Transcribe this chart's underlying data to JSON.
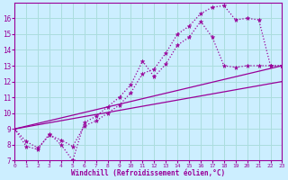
{
  "xlabel": "Windchill (Refroidissement éolien,°C)",
  "bg_color": "#cceeff",
  "grid_color": "#aadddd",
  "line_color": "#990099",
  "xlim": [
    0,
    23
  ],
  "ylim": [
    7,
    17
  ],
  "yticks": [
    7,
    8,
    9,
    10,
    11,
    12,
    13,
    14,
    15,
    16
  ],
  "xticks": [
    0,
    1,
    2,
    3,
    4,
    5,
    6,
    7,
    8,
    9,
    10,
    11,
    12,
    13,
    14,
    15,
    16,
    17,
    18,
    19,
    20,
    21,
    22,
    23
  ],
  "series1_x": [
    0,
    1,
    2,
    3,
    4,
    5,
    6,
    7,
    8,
    9,
    10,
    11,
    12,
    13,
    14,
    15,
    16,
    17,
    18,
    19,
    20,
    21,
    22,
    23
  ],
  "series1_y": [
    9.0,
    7.9,
    7.7,
    8.7,
    8.0,
    7.0,
    9.4,
    9.8,
    10.4,
    11.0,
    11.8,
    13.3,
    12.3,
    13.1,
    14.3,
    14.8,
    15.8,
    14.8,
    13.0,
    12.9,
    13.0,
    13.0,
    13.0,
    13.0
  ],
  "series2_x": [
    0,
    1,
    2,
    3,
    4,
    5,
    6,
    7,
    8,
    9,
    10,
    11,
    12,
    13,
    14,
    15,
    16,
    17,
    18,
    19,
    20,
    21,
    22,
    23
  ],
  "series2_y": [
    9.0,
    8.2,
    7.8,
    8.6,
    8.3,
    7.9,
    9.2,
    9.5,
    10.0,
    10.5,
    11.3,
    12.5,
    12.8,
    13.8,
    15.0,
    15.5,
    16.3,
    16.7,
    16.8,
    15.9,
    16.0,
    15.9,
    13.0,
    13.0
  ],
  "series3_x": [
    0,
    23
  ],
  "series3_y": [
    9.0,
    12.0
  ],
  "series4_x": [
    0,
    23
  ],
  "series4_y": [
    9.0,
    13.0
  ]
}
